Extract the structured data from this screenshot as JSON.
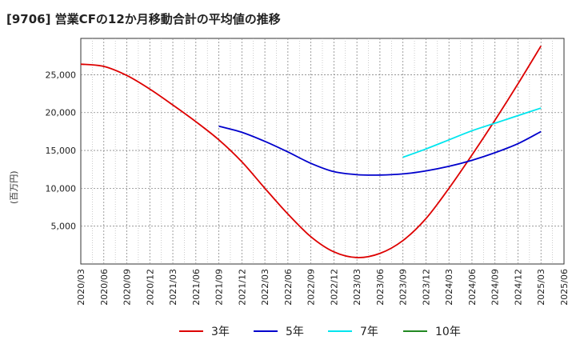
{
  "chart_data": {
    "type": "line",
    "title": "[9706]  営業CFの12か月移動合計の平均値の推移",
    "ylabel": "(百万円)",
    "xlabel": "",
    "ylim": [
      0,
      29800
    ],
    "yticks": [
      5000,
      10000,
      15000,
      20000,
      25000
    ],
    "ytick_labels": [
      "5,000",
      "10,000",
      "15,000",
      "20,000",
      "25,000"
    ],
    "xtick_labels": [
      "2020/03",
      "2020/06",
      "2020/09",
      "2020/12",
      "2021/03",
      "2021/06",
      "2021/09",
      "2021/12",
      "2022/03",
      "2022/06",
      "2022/09",
      "2022/12",
      "2023/03",
      "2023/06",
      "2023/09",
      "2023/12",
      "2024/03",
      "2024/06",
      "2024/09",
      "2024/12",
      "2025/03",
      "2025/06"
    ],
    "grid": true,
    "legend_position": "bottom",
    "series": [
      {
        "name": "3年",
        "color": "#dd0000",
        "x": [
          "2020/03",
          "2020/06",
          "2020/09",
          "2020/12",
          "2021/03",
          "2021/06",
          "2021/09",
          "2021/12",
          "2022/03",
          "2022/06",
          "2022/09",
          "2022/12",
          "2023/03",
          "2023/06",
          "2023/09",
          "2023/12",
          "2024/03",
          "2024/06",
          "2024/09",
          "2024/12",
          "2025/03"
        ],
        "values": [
          26400,
          26100,
          24900,
          23100,
          21000,
          18800,
          16400,
          13500,
          10000,
          6600,
          3600,
          1600,
          850,
          1400,
          3100,
          6000,
          10000,
          14400,
          19000,
          23800,
          28800
        ]
      },
      {
        "name": "5年",
        "color": "#0000cc",
        "x": [
          "2021/09",
          "2021/12",
          "2022/03",
          "2022/06",
          "2022/09",
          "2022/12",
          "2023/03",
          "2023/06",
          "2023/09",
          "2023/12",
          "2024/03",
          "2024/06",
          "2024/09",
          "2024/12",
          "2025/03"
        ],
        "values": [
          18200,
          17400,
          16200,
          14800,
          13300,
          12200,
          11800,
          11750,
          11900,
          12300,
          12900,
          13700,
          14700,
          15900,
          17500
        ]
      },
      {
        "name": "7年",
        "color": "#00e5ee",
        "x": [
          "2023/09",
          "2023/12",
          "2024/03",
          "2024/06",
          "2024/09",
          "2024/12",
          "2025/03"
        ],
        "values": [
          14100,
          15200,
          16400,
          17600,
          18600,
          19600,
          20600
        ]
      },
      {
        "name": "10年",
        "color": "#228822",
        "x": [],
        "values": []
      }
    ]
  }
}
